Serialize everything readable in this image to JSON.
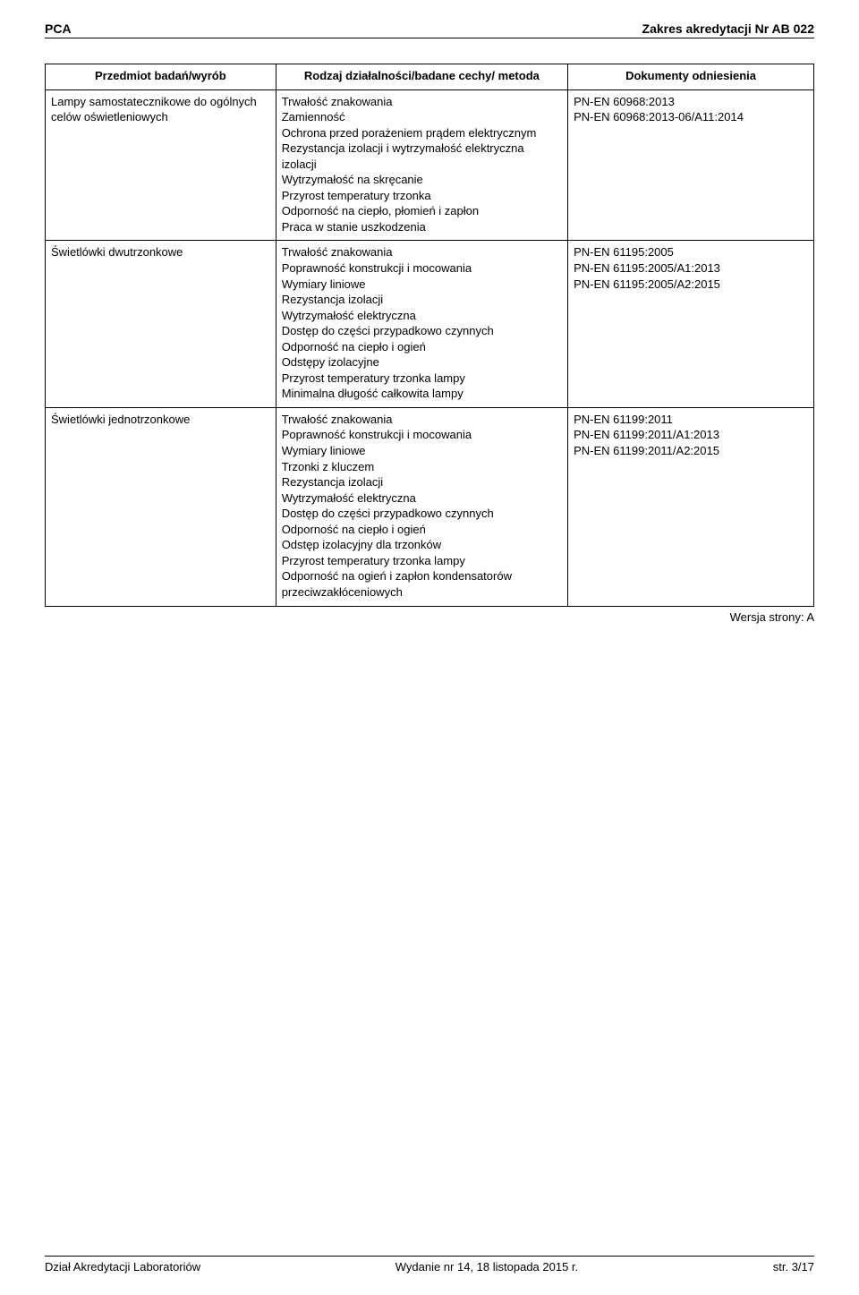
{
  "header": {
    "left": "PCA",
    "right": "Zakres akredytacji Nr AB 022"
  },
  "table": {
    "headers": {
      "col1": "Przedmiot badań/wyrób",
      "col2": "Rodzaj działalności/badane cechy/ metoda",
      "col3": "Dokumenty odniesienia"
    },
    "rows": [
      {
        "subject": "Lampy samostatecznikowe do ogólnych celów oświetleniowych",
        "activity": [
          "Trwałość znakowania",
          "Zamienność",
          "Ochrona przed porażeniem prądem elektrycznym",
          "Rezystancja izolacji i wytrzymałość elektryczna izolacji",
          "Wytrzymałość na skręcanie",
          "Przyrost temperatury trzonka",
          "Odporność na ciepło, płomień i zapłon",
          "Praca w stanie uszkodzenia"
        ],
        "refs": [
          "PN-EN 60968:2013",
          "PN-EN 60968:2013-06/A11:2014"
        ]
      },
      {
        "subject": "Świetlówki dwutrzonkowe",
        "activity": [
          "Trwałość znakowania",
          "Poprawność konstrukcji i mocowania",
          "Wymiary liniowe",
          "Rezystancja izolacji",
          "Wytrzymałość elektryczna",
          "Dostęp do części przypadkowo czynnych",
          "Odporność na ciepło i ogień",
          "Odstępy izolacyjne",
          "Przyrost temperatury trzonka lampy",
          "Minimalna długość całkowita lampy"
        ],
        "refs": [
          "PN-EN 61195:2005",
          "PN-EN 61195:2005/A1:2013",
          "PN-EN 61195:2005/A2:2015"
        ]
      },
      {
        "subject": "Świetlówki jednotrzonkowe",
        "activity": [
          "Trwałość znakowania",
          "Poprawność konstrukcji i mocowania",
          "Wymiary liniowe",
          "Trzonki z kluczem",
          "Rezystancja izolacji",
          "Wytrzymałość elektryczna",
          "Dostęp do części przypadkowo czynnych",
          "Odporność na ciepło i ogień",
          "Odstęp izolacyjny dla trzonków",
          "Przyrost temperatury trzonka lampy",
          "Odporność na ogień i zapłon kondensatorów przeciwzakłóceniowych"
        ],
        "refs": [
          "PN-EN 61199:2011",
          "PN-EN 61199:2011/A1:2013",
          "PN-EN 61199:2011/A2:2015"
        ]
      }
    ]
  },
  "version": "Wersja strony: A",
  "footer": {
    "left": "Dział Akredytacji Laboratoriów",
    "center": "Wydanie nr 14, 18 listopada 2015 r.",
    "right": "str. 3/17"
  }
}
